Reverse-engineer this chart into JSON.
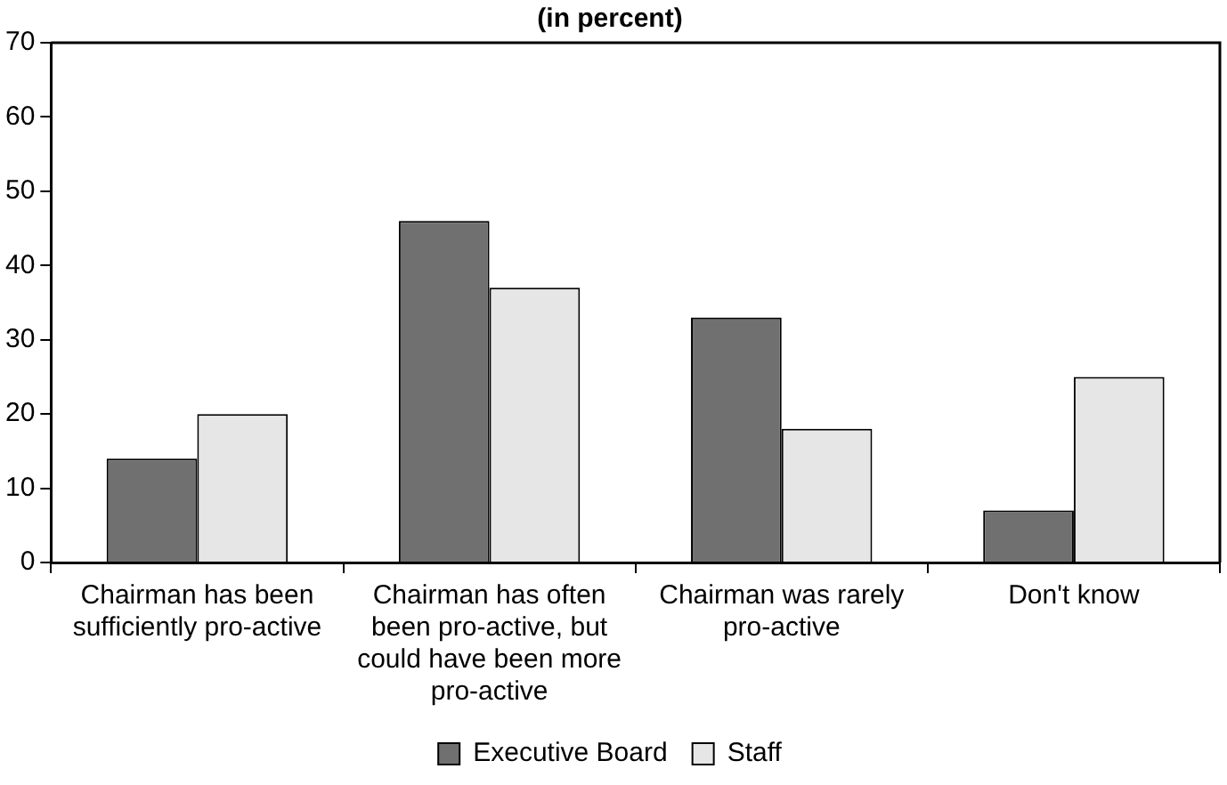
{
  "chart_data": {
    "type": "bar",
    "title": "(in percent)",
    "categories": [
      "Chairman has been sufficiently pro-active",
      "Chairman has often been pro-active, but could have been more pro-active",
      "Chairman was rarely pro-active",
      "Don't know"
    ],
    "series": [
      {
        "name": "Executive Board",
        "color": "#707070",
        "values": [
          14,
          46,
          33,
          7
        ]
      },
      {
        "name": "Staff",
        "color": "#e6e6e6",
        "values": [
          20,
          37,
          18,
          25
        ]
      }
    ],
    "ylim": [
      0,
      70
    ],
    "yticks": [
      0,
      10,
      20,
      30,
      40,
      50,
      60,
      70
    ],
    "grid": false,
    "legend": "bottom"
  }
}
